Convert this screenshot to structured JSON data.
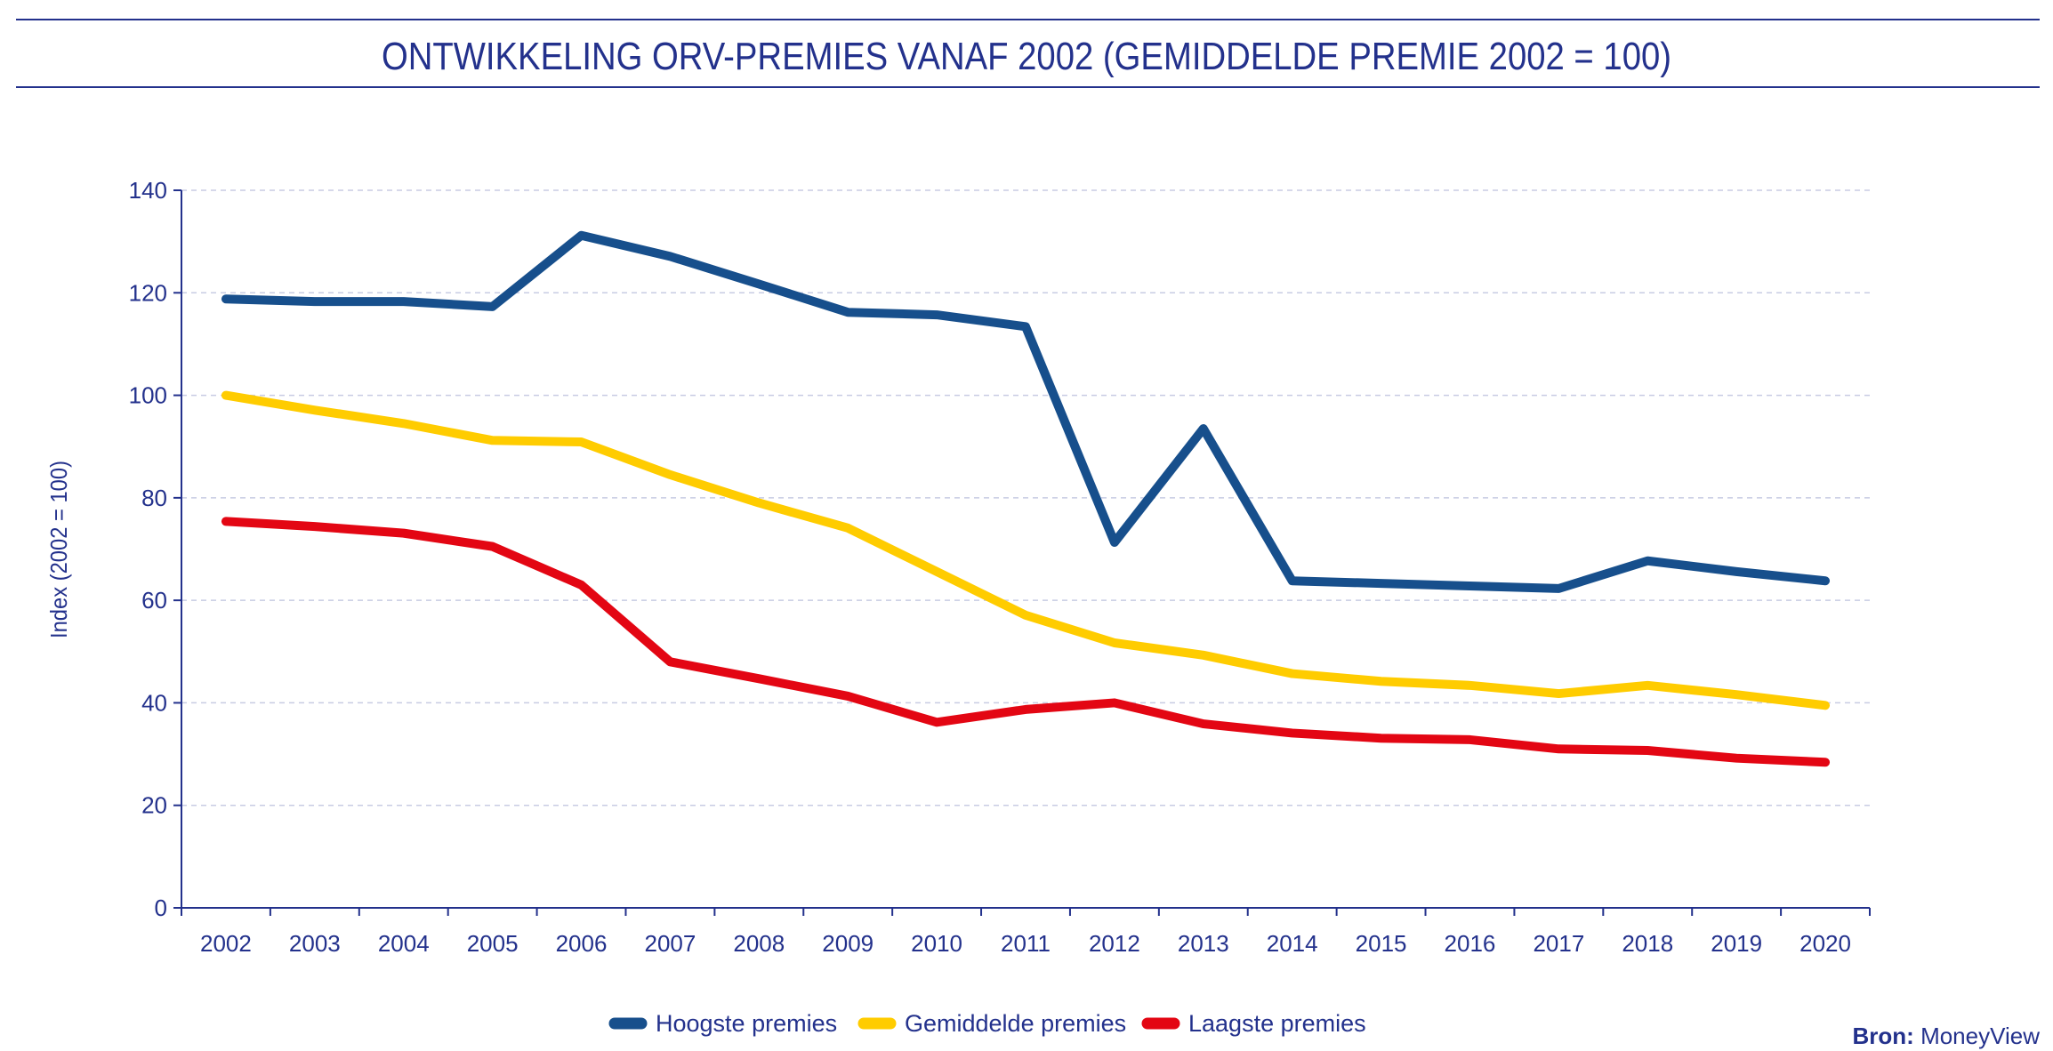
{
  "chart_data": {
    "type": "line",
    "title": "ONTWIKKELING ORV-PREMIES VANAF 2002 (GEMIDDELDE PREMIE 2002 = 100)",
    "xlabel": "",
    "ylabel": "Index (2002 = 100)",
    "ylim": [
      0,
      140
    ],
    "yticks": [
      0,
      20,
      40,
      60,
      80,
      100,
      120,
      140
    ],
    "grid": true,
    "legend": "bottom",
    "categories": [
      "2002",
      "2003",
      "2004",
      "2005",
      "2006",
      "2007",
      "2008",
      "2009",
      "2010",
      "2011",
      "2012",
      "2013",
      "2014",
      "2015",
      "2016",
      "2017",
      "2018",
      "2019",
      "2020"
    ],
    "series": [
      {
        "name": "Hoogste premies",
        "color": "#174f8c",
        "values": [
          118.8,
          118.3,
          118.3,
          117.3,
          131.2,
          127.1,
          121.7,
          116.2,
          115.7,
          113.4,
          71.3,
          93.5,
          63.8,
          63.3,
          62.8,
          62.3,
          67.7,
          65.6,
          63.8
        ]
      },
      {
        "name": "Gemiddelde premies",
        "color": "#ffcc00",
        "values": [
          100,
          97.1,
          94.5,
          91.2,
          90.9,
          84.5,
          79.0,
          74.1,
          65.6,
          57.1,
          51.7,
          49.3,
          45.7,
          44.2,
          43.4,
          41.8,
          43.4,
          41.6,
          39.5
        ]
      },
      {
        "name": "Laagste premies",
        "color": "#e30613",
        "values": [
          75.4,
          74.4,
          73.1,
          70.5,
          63.0,
          48.0,
          44.7,
          41.3,
          36.2,
          38.7,
          40.0,
          35.9,
          34.1,
          33.1,
          32.8,
          31.0,
          30.7,
          29.2,
          28.4
        ]
      }
    ]
  },
  "source": {
    "label": "Bron:",
    "value": "MoneyView"
  },
  "colors": {
    "text": "#23318c",
    "grid": "#c8cce3"
  }
}
